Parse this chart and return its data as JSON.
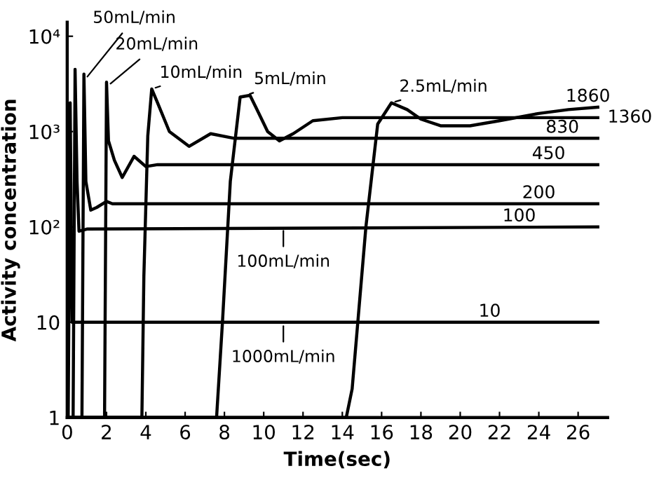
{
  "chart_data": {
    "type": "line",
    "xlabel": "Time(sec)",
    "ylabel": "Activity concentration",
    "log": "y",
    "xlim": [
      0,
      27.5
    ],
    "ylim": [
      1,
      14000
    ],
    "xticks": [
      0,
      2,
      4,
      6,
      8,
      10,
      12,
      14,
      16,
      18,
      20,
      22,
      24,
      26
    ],
    "yticks": [
      1,
      10,
      {
        "value": 100,
        "label": "10²"
      },
      {
        "value": 1000,
        "label": "10³"
      },
      {
        "value": 10000,
        "label": "10⁴"
      }
    ],
    "grid": false,
    "series": [
      {
        "color": "#000000",
        "x": [
          0,
          0.05,
          0.15,
          0.25,
          0.35,
          27
        ],
        "values": [
          1,
          1,
          2000,
          10,
          10,
          10
        ]
      },
      {
        "color": "#000000",
        "x": [
          0,
          0.3,
          0.4,
          0.5,
          0.6,
          1,
          27
        ],
        "values": [
          1,
          1,
          4500,
          300,
          90,
          95,
          100
        ]
      },
      {
        "color": "#000000",
        "x": [
          0,
          0.75,
          0.85,
          0.95,
          1.2,
          1.5,
          2,
          2.3,
          27
        ],
        "values": [
          1,
          1,
          4000,
          300,
          150,
          160,
          185,
          175,
          175
        ]
      },
      {
        "color": "#000000",
        "x": [
          0,
          1.9,
          2.0,
          2.1,
          2.4,
          2.8,
          3.4,
          4.0,
          4.6,
          27
        ],
        "values": [
          1,
          1,
          3300,
          800,
          500,
          330,
          550,
          430,
          450,
          450
        ]
      },
      {
        "color": "#000000",
        "x": [
          0,
          3.8,
          3.9,
          4.1,
          4.3,
          4.6,
          5.2,
          6.2,
          7.3,
          8.5,
          9.5,
          27
        ],
        "values": [
          1,
          1,
          30,
          900,
          2800,
          2000,
          1000,
          700,
          950,
          850,
          850,
          850
        ]
      },
      {
        "color": "#000000",
        "x": [
          0,
          7.6,
          7.9,
          8.3,
          8.8,
          9.3,
          9.6,
          10.2,
          10.8,
          11.5,
          12.5,
          14,
          27
        ],
        "values": [
          1,
          1,
          10,
          300,
          2300,
          2400,
          1800,
          1000,
          800,
          950,
          1300,
          1400,
          1400
        ]
      },
      {
        "color": "#000000",
        "x": [
          0,
          14.2,
          14.5,
          15.2,
          15.8,
          16.5,
          17.3,
          18,
          19,
          20.5,
          22,
          24,
          25.5,
          27
        ],
        "values": [
          1,
          1,
          2,
          100,
          1200,
          2000,
          1700,
          1350,
          1150,
          1150,
          1300,
          1550,
          1700,
          1800
        ]
      }
    ],
    "annotations": [
      {
        "text": "50mL/min",
        "x": 0.9,
        "y": 3500
      },
      {
        "text": "20mL/min",
        "x": 2.05,
        "y": 3000
      },
      {
        "text": "10mL/min",
        "x": 4.3,
        "y": 2800
      },
      {
        "text": "5mL/min",
        "x": 9.1,
        "y": 2400
      },
      {
        "text": "2.5mL/min",
        "x": 16.5,
        "y": 2000
      },
      {
        "text": "100mL/min",
        "x": 11,
        "y": 100
      },
      {
        "text": "1000mL/min",
        "x": 11,
        "y": 10
      },
      {
        "text": "1860",
        "x": 26.5,
        "y": 1800
      },
      {
        "text": "1360",
        "x": 27.2,
        "y": 1400
      },
      {
        "text": "830",
        "x": 25.2,
        "y": 850
      },
      {
        "text": "450",
        "x": 24.5,
        "y": 450
      },
      {
        "text": "200",
        "x": 24,
        "y": 175
      },
      {
        "text": "100",
        "x": 23,
        "y": 100
      },
      {
        "text": "10",
        "x": 21.5,
        "y": 10
      }
    ]
  }
}
